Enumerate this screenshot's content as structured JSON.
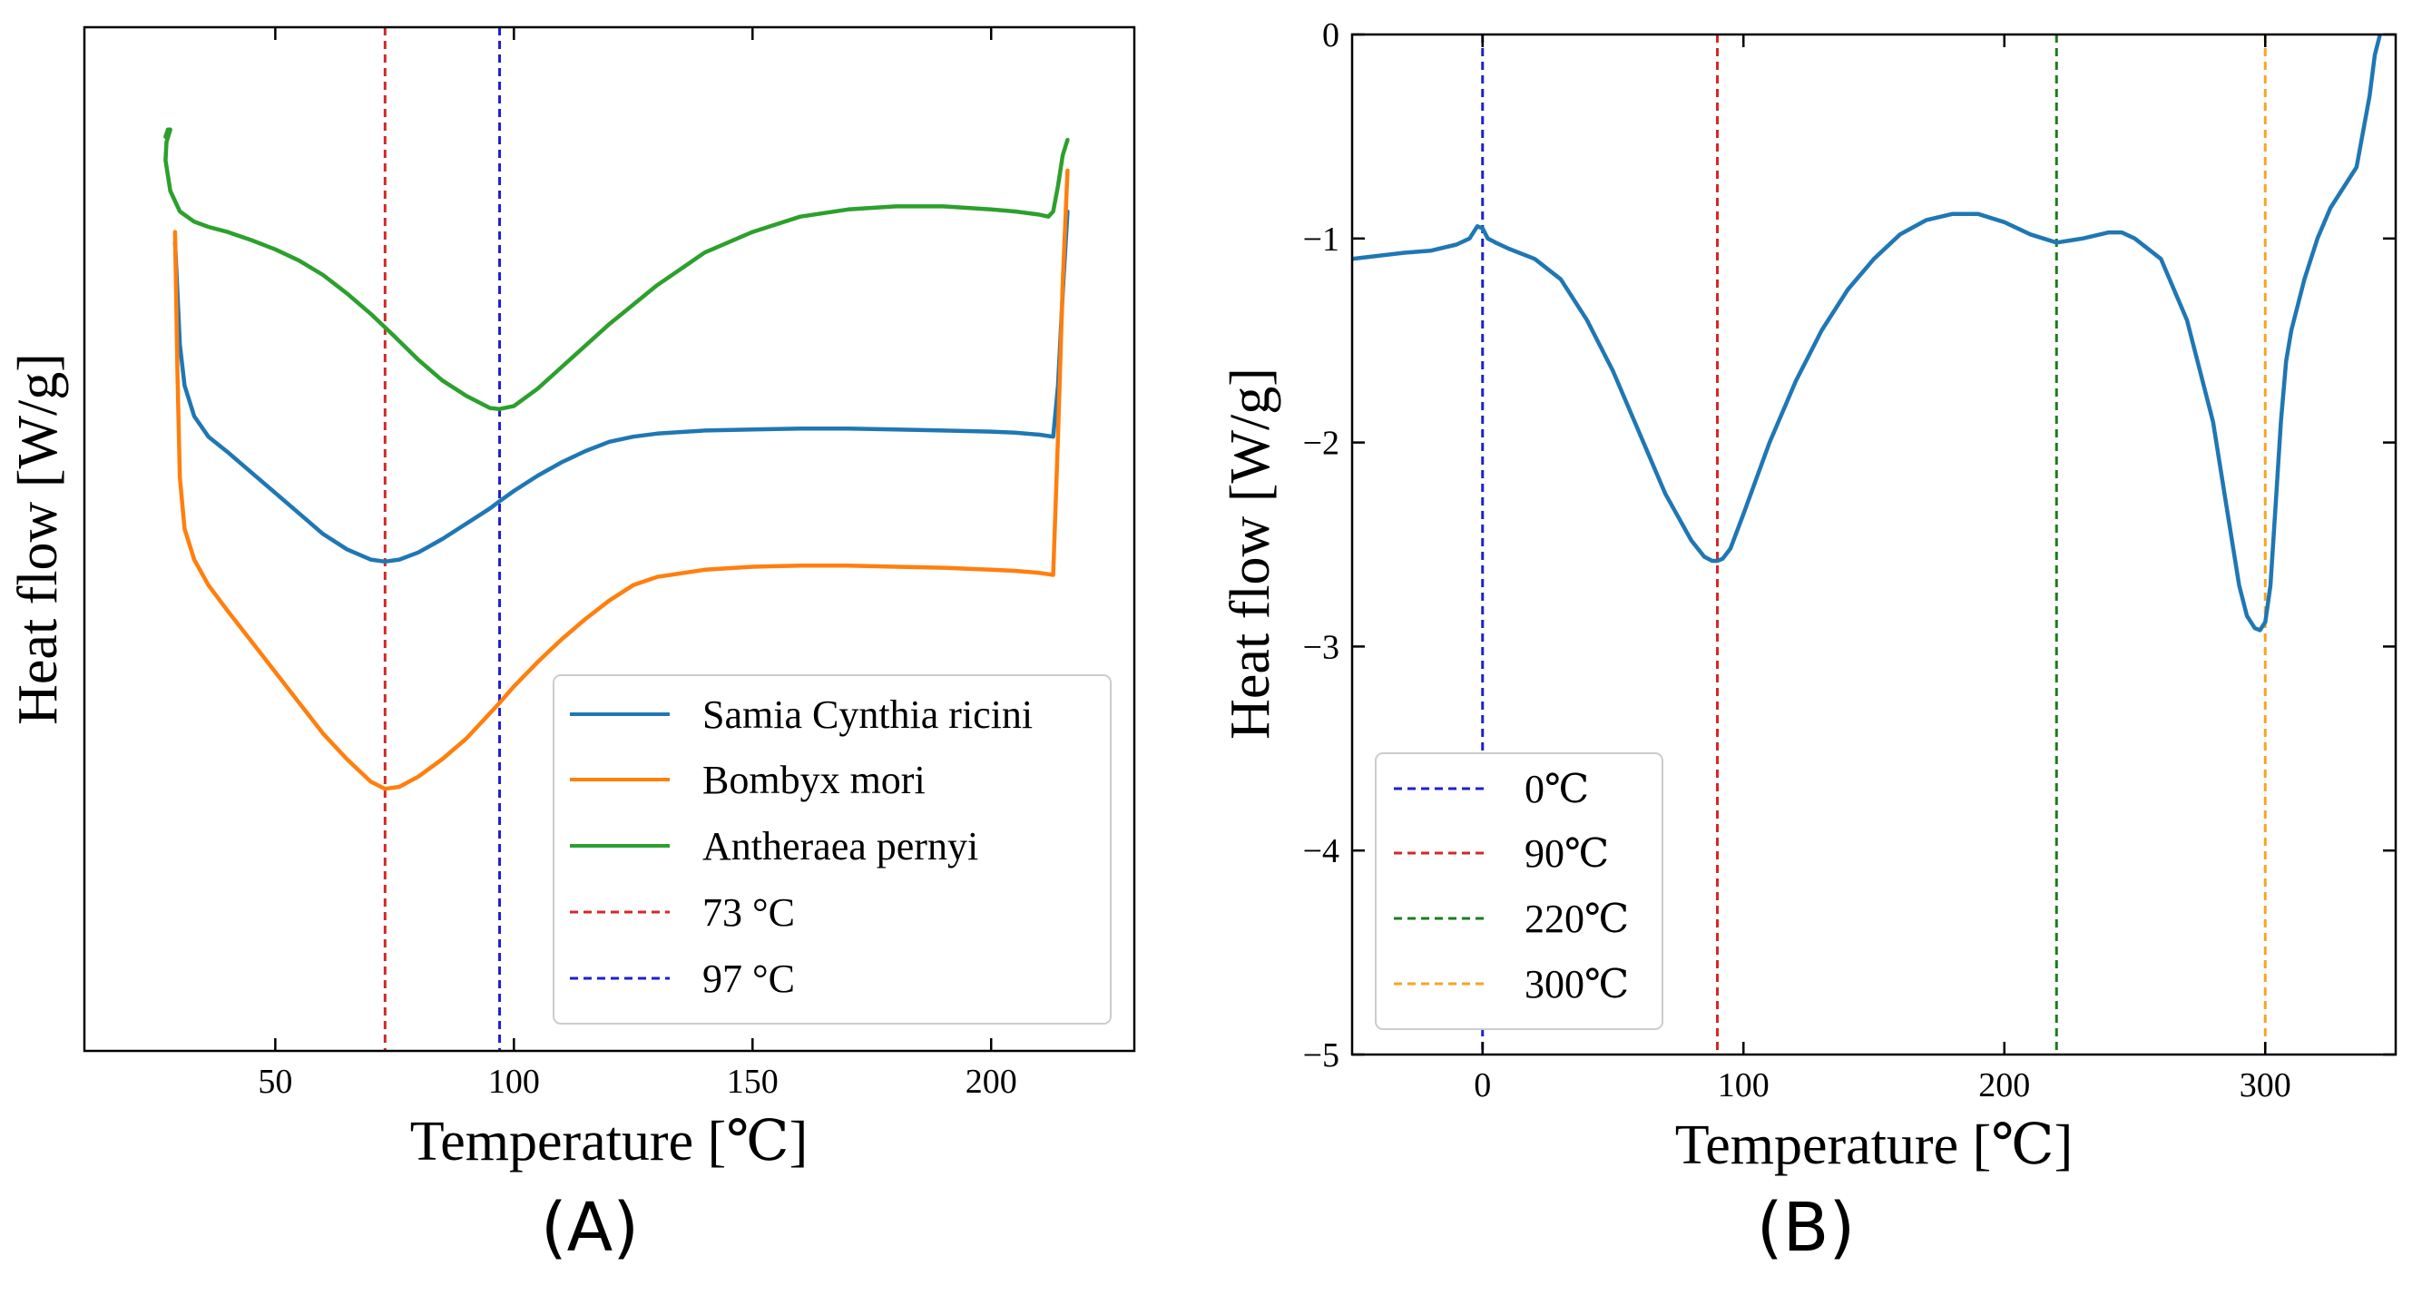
{
  "chart_data": [
    {
      "type": "line",
      "panel_label": "(A)",
      "xlabel": "Temperature [℃]",
      "ylabel": "Heat flow [W/g]",
      "xlim": [
        10,
        230
      ],
      "ylim": [
        0,
        1
      ],
      "xticks": [
        50,
        100,
        150,
        200
      ],
      "ytick_labels": "none",
      "grid": false,
      "legend_location": "lower-right",
      "series": [
        {
          "name": "Samia Cynthia ricini",
          "color": "#1f77b4",
          "x": [
            29,
            29.5,
            30,
            31,
            33,
            36,
            40,
            45,
            50,
            55,
            60,
            65,
            70,
            73,
            76,
            80,
            85,
            90,
            95,
            97,
            100,
            105,
            110,
            115,
            120,
            125,
            130,
            140,
            150,
            160,
            170,
            180,
            190,
            200,
            205,
            210,
            213,
            214,
            215,
            216
          ],
          "y": [
            0.79,
            0.74,
            0.69,
            0.65,
            0.62,
            0.6,
            0.585,
            0.565,
            0.545,
            0.525,
            0.505,
            0.49,
            0.48,
            0.478,
            0.48,
            0.487,
            0.5,
            0.515,
            0.53,
            0.537,
            0.547,
            0.562,
            0.575,
            0.586,
            0.595,
            0.6,
            0.603,
            0.606,
            0.607,
            0.608,
            0.608,
            0.607,
            0.606,
            0.605,
            0.604,
            0.602,
            0.6,
            0.65,
            0.74,
            0.82
          ]
        },
        {
          "name": "Bombyx mori",
          "color": "#ff7f0e",
          "x": [
            29,
            29.5,
            30,
            31,
            33,
            36,
            40,
            45,
            50,
            55,
            60,
            65,
            70,
            73,
            76,
            80,
            85,
            90,
            95,
            97,
            100,
            105,
            110,
            115,
            120,
            125,
            130,
            140,
            150,
            160,
            170,
            180,
            190,
            200,
            205,
            210,
            213,
            214,
            215,
            216
          ],
          "y": [
            0.8,
            0.66,
            0.56,
            0.51,
            0.48,
            0.455,
            0.43,
            0.4,
            0.37,
            0.34,
            0.31,
            0.285,
            0.263,
            0.256,
            0.258,
            0.268,
            0.285,
            0.305,
            0.33,
            0.34,
            0.356,
            0.38,
            0.402,
            0.422,
            0.44,
            0.455,
            0.463,
            0.47,
            0.473,
            0.474,
            0.474,
            0.473,
            0.472,
            0.47,
            0.469,
            0.467,
            0.465,
            0.6,
            0.75,
            0.86
          ]
        },
        {
          "name": "Antheraea pernyi",
          "color": "#2ca02c",
          "x": [
            27,
            27.5,
            28,
            27.2,
            27,
            28,
            30,
            33,
            36,
            40,
            45,
            50,
            55,
            60,
            65,
            70,
            75,
            80,
            85,
            90,
            95,
            97,
            100,
            105,
            110,
            120,
            130,
            140,
            150,
            160,
            170,
            180,
            190,
            200,
            205,
            210,
            212,
            213,
            214,
            215,
            216
          ],
          "y": [
            0.893,
            0.9,
            0.9,
            0.888,
            0.87,
            0.84,
            0.82,
            0.81,
            0.805,
            0.8,
            0.792,
            0.783,
            0.772,
            0.758,
            0.74,
            0.72,
            0.698,
            0.675,
            0.655,
            0.64,
            0.628,
            0.627,
            0.63,
            0.647,
            0.668,
            0.71,
            0.748,
            0.78,
            0.8,
            0.815,
            0.822,
            0.825,
            0.825,
            0.822,
            0.82,
            0.817,
            0.815,
            0.82,
            0.845,
            0.875,
            0.89
          ]
        }
      ],
      "vlines": [
        {
          "x": 73,
          "label": "73 °C",
          "color": "#d62728"
        },
        {
          "x": 97,
          "label": "97 °C",
          "color": "#1f1fcf"
        }
      ]
    },
    {
      "type": "line",
      "panel_label": "(B)",
      "xlabel": "Temperature [℃]",
      "ylabel": "Heat flow [W/g]",
      "xlim": [
        -50,
        350
      ],
      "ylim": [
        -5,
        0
      ],
      "xticks": [
        0,
        100,
        200,
        300
      ],
      "yticks": [
        0,
        -1,
        -2,
        -3,
        -4,
        -5
      ],
      "ytick_labels": [
        "0",
        "−1",
        "−2",
        "−3",
        "−4",
        "−5"
      ],
      "grid": false,
      "legend_location": "lower-left",
      "series": [
        {
          "color": "#1f77b4",
          "x": [
            -50,
            -40,
            -30,
            -20,
            -10,
            -5,
            -2,
            0,
            2,
            5,
            10,
            20,
            30,
            40,
            50,
            60,
            70,
            80,
            85,
            88,
            90,
            92,
            95,
            100,
            110,
            120,
            130,
            140,
            150,
            160,
            170,
            180,
            190,
            200,
            210,
            220,
            230,
            240,
            245,
            250,
            260,
            270,
            280,
            285,
            290,
            293,
            296,
            298,
            300,
            302,
            304,
            306,
            308,
            310,
            315,
            320,
            325,
            330,
            335,
            340,
            342,
            344
          ],
          "y": [
            -1.1,
            -1.085,
            -1.07,
            -1.06,
            -1.03,
            -1.0,
            -0.94,
            -0.95,
            -1.0,
            -1.02,
            -1.05,
            -1.1,
            -1.2,
            -1.4,
            -1.65,
            -1.95,
            -2.25,
            -2.48,
            -2.56,
            -2.58,
            -2.58,
            -2.57,
            -2.52,
            -2.35,
            -2.0,
            -1.7,
            -1.45,
            -1.25,
            -1.1,
            -0.98,
            -0.91,
            -0.88,
            -0.88,
            -0.92,
            -0.98,
            -1.02,
            -1.0,
            -0.97,
            -0.97,
            -1.0,
            -1.1,
            -1.4,
            -1.9,
            -2.3,
            -2.7,
            -2.85,
            -2.91,
            -2.92,
            -2.88,
            -2.7,
            -2.3,
            -1.9,
            -1.6,
            -1.45,
            -1.2,
            -1.0,
            -0.85,
            -0.75,
            -0.65,
            -0.3,
            -0.1,
            0.0
          ]
        }
      ],
      "vlines": [
        {
          "x": 0,
          "label": "0℃",
          "color": "#1f1fcf"
        },
        {
          "x": 90,
          "label": "90℃",
          "color": "#d62728"
        },
        {
          "x": 220,
          "label": "220℃",
          "color": "#1e7a1e"
        },
        {
          "x": 300,
          "label": "300℃",
          "color": "#f5a623"
        }
      ]
    }
  ]
}
